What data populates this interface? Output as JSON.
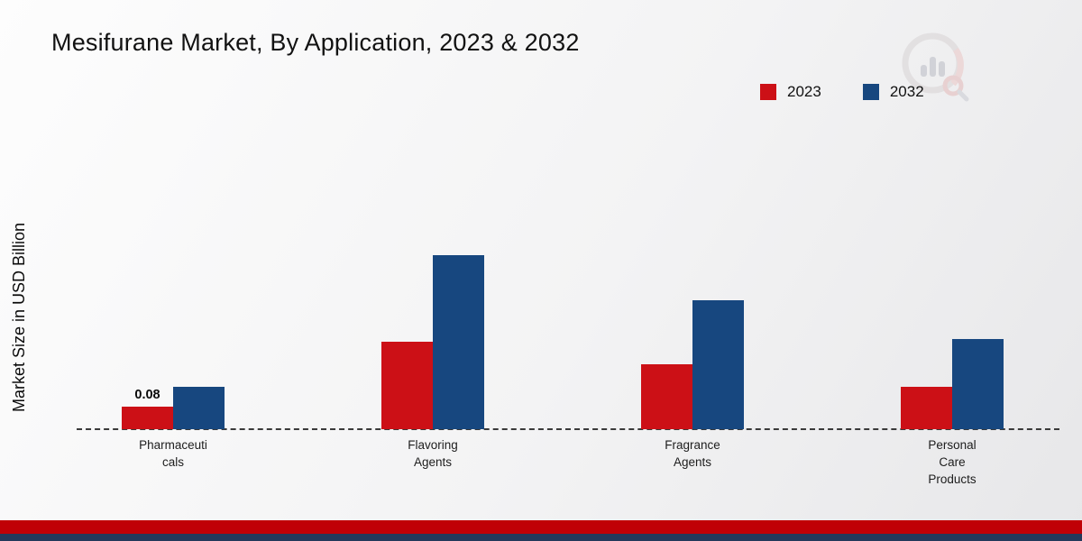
{
  "chart_data": {
    "type": "bar",
    "title": "Mesifurane Market, By Application, 2023 & 2032",
    "ylabel": "Market Size in USD Billion",
    "xlabel": "",
    "categories": [
      "Pharmaceuticals",
      "Flavoring Agents",
      "Fragrance Agents",
      "Personal Care Products"
    ],
    "tick_label_lines": [
      [
        "Pharmaceuti",
        "cals"
      ],
      [
        "Flavoring",
        "Agents"
      ],
      [
        "Fragrance",
        "Agents"
      ],
      [
        "Personal",
        "Care",
        "Products"
      ]
    ],
    "series": [
      {
        "name": "2023",
        "color": "#cc1016",
        "values": [
          0.08,
          0.31,
          0.23,
          0.15
        ]
      },
      {
        "name": "2032",
        "color": "#17477f",
        "values": [
          0.15,
          0.62,
          0.46,
          0.32
        ]
      }
    ],
    "data_labels": [
      [
        "0.08",
        "",
        "",
        ""
      ],
      [
        "",
        "",
        "",
        ""
      ]
    ],
    "ylim": [
      0,
      0.7
    ],
    "grid": false,
    "legend_position": "top-right",
    "axis_line_style": "dashed"
  },
  "branding": {
    "watermark_icon": "market-research-logo"
  },
  "colors": {
    "footer_red": "#c00006",
    "footer_navy": "#23395b",
    "axis_dash": "#3a3a3a"
  }
}
